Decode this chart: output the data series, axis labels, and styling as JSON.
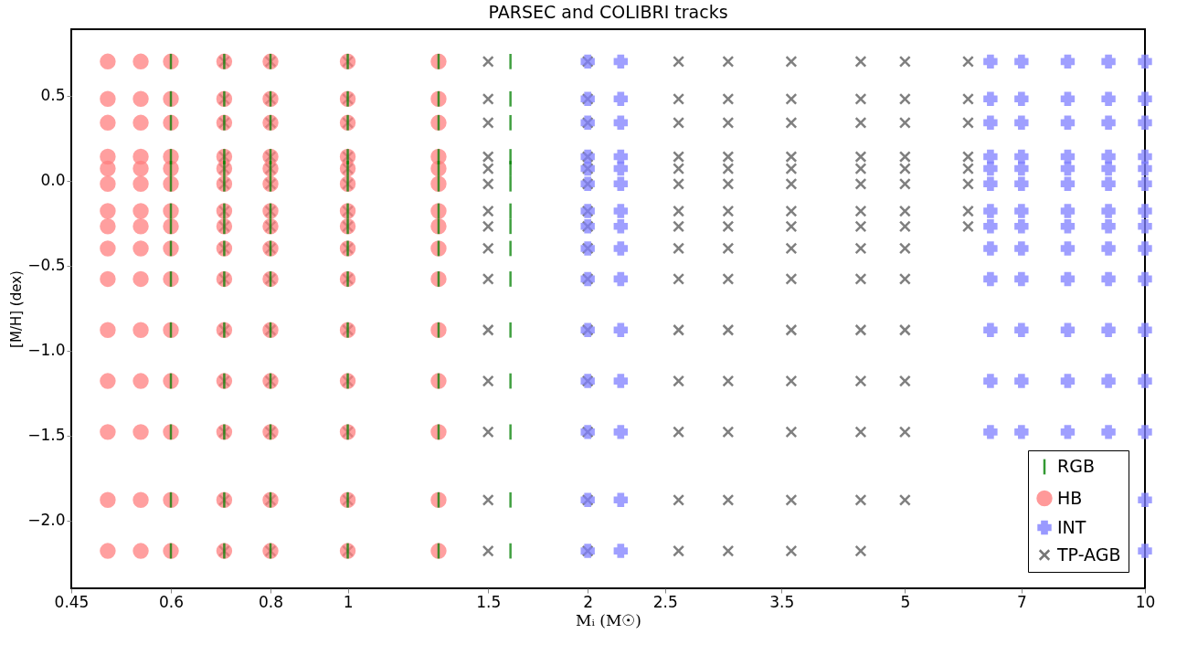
{
  "chart_data": {
    "type": "scatter",
    "title": "PARSEC and COLIBRI tracks",
    "xlabel": "Mᵢ (M☉)",
    "ylabel": "[M/H] (dex)",
    "log": "x",
    "xlim": [
      0.45,
      10
    ],
    "xticks": [
      0.45,
      0.6,
      0.8,
      1,
      1.5,
      2,
      2.5,
      3.5,
      5,
      7,
      10
    ],
    "ylim": [
      -2.4,
      0.89
    ],
    "yticks": [
      {
        "value": -2,
        "label": "−2.0"
      },
      {
        "value": -1.5,
        "label": "−1.5"
      },
      {
        "value": -1,
        "label": "−1.0"
      },
      {
        "value": -0.5,
        "label": "−0.5"
      },
      {
        "value": 0,
        "label": "0.0"
      },
      0.5
    ],
    "grid": false,
    "legend": "bottom right",
    "series": [
      {
        "name": "RGB",
        "color": "#008000",
        "x": [
          0.6,
          0.7,
          0.8,
          1,
          1.3,
          1.6,
          0.6,
          0.7,
          0.8,
          1,
          1.3,
          1.6,
          0.6,
          0.7,
          0.8,
          1,
          1.3,
          1.6,
          0.6,
          0.7,
          0.8,
          1,
          1.3,
          1.6,
          0.6,
          0.7,
          0.8,
          1,
          1.3,
          1.6,
          0.6,
          0.7,
          0.8,
          1,
          1.3,
          1.6,
          0.6,
          0.7,
          0.8,
          1,
          1.3,
          1.6,
          0.6,
          0.7,
          0.8,
          1,
          1.3,
          1.6,
          0.6,
          0.7,
          0.8,
          1,
          1.3,
          1.6,
          0.6,
          0.7,
          0.8,
          1,
          1.3,
          1.6,
          0.6,
          0.7,
          0.8,
          1,
          1.3,
          1.6,
          0.6,
          0.7,
          0.8,
          1,
          1.3,
          1.6,
          0.6,
          0.7,
          0.8,
          1,
          1.3,
          1.6,
          0.6,
          0.7,
          0.8,
          1,
          1.3,
          1.6,
          0.6,
          0.7,
          0.8,
          1,
          1.3,
          1.6
        ],
        "values": [
          0.7,
          0.7,
          0.7,
          0.7,
          0.7,
          0.7,
          0.48,
          0.48,
          0.48,
          0.48,
          0.48,
          0.48,
          0.34,
          0.34,
          0.34,
          0.34,
          0.34,
          0.34,
          0.14,
          0.14,
          0.14,
          0.14,
          0.14,
          0.14,
          0.07,
          0.07,
          0.07,
          0.07,
          0.07,
          0.07,
          -0.02,
          -0.02,
          -0.02,
          -0.02,
          -0.02,
          -0.02,
          -0.18,
          -0.18,
          -0.18,
          -0.18,
          -0.18,
          -0.18,
          -0.27,
          -0.27,
          -0.27,
          -0.27,
          -0.27,
          -0.27,
          -0.4,
          -0.4,
          -0.4,
          -0.4,
          -0.4,
          -0.4,
          -0.58,
          -0.58,
          -0.58,
          -0.58,
          -0.58,
          -0.58,
          -0.88,
          -0.88,
          -0.88,
          -0.88,
          -0.88,
          -0.88,
          -1.18,
          -1.18,
          -1.18,
          -1.18,
          -1.18,
          -1.18,
          -1.48,
          -1.48,
          -1.48,
          -1.48,
          -1.48,
          -1.48,
          -1.88,
          -1.88,
          -1.88,
          -1.88,
          -1.88,
          -1.88,
          -2.18,
          -2.18,
          -2.18,
          -2.18,
          -2.18,
          -2.18
        ]
      },
      {
        "name": "HB",
        "color": "#ff8080",
        "x": [
          0.5,
          0.55,
          0.6,
          0.7,
          0.8,
          1,
          1.3,
          0.5,
          0.55,
          0.6,
          0.7,
          0.8,
          1,
          1.3,
          0.5,
          0.55,
          0.6,
          0.7,
          0.8,
          1,
          1.3,
          0.5,
          0.55,
          0.6,
          0.7,
          0.8,
          1,
          1.3,
          0.5,
          0.55,
          0.6,
          0.7,
          0.8,
          1,
          1.3,
          0.5,
          0.55,
          0.6,
          0.7,
          0.8,
          1,
          1.3,
          0.5,
          0.55,
          0.6,
          0.7,
          0.8,
          1,
          1.3,
          0.5,
          0.55,
          0.6,
          0.7,
          0.8,
          1,
          1.3,
          0.5,
          0.55,
          0.6,
          0.7,
          0.8,
          1,
          1.3,
          0.5,
          0.55,
          0.6,
          0.7,
          0.8,
          1,
          1.3,
          0.5,
          0.55,
          0.6,
          0.7,
          0.8,
          1,
          1.3,
          0.5,
          0.55,
          0.6,
          0.7,
          0.8,
          1,
          1.3,
          0.5,
          0.55,
          0.6,
          0.7,
          0.8,
          1,
          1.3,
          0.5,
          0.55,
          0.6,
          0.7,
          0.8,
          1,
          1.3,
          0.5,
          0.55,
          0.6,
          0.7,
          0.8,
          1,
          1.3
        ],
        "values": [
          0.7,
          0.7,
          0.7,
          0.7,
          0.7,
          0.7,
          0.7,
          0.48,
          0.48,
          0.48,
          0.48,
          0.48,
          0.48,
          0.48,
          0.34,
          0.34,
          0.34,
          0.34,
          0.34,
          0.34,
          0.34,
          0.14,
          0.14,
          0.14,
          0.14,
          0.14,
          0.14,
          0.14,
          0.07,
          0.07,
          0.07,
          0.07,
          0.07,
          0.07,
          0.07,
          -0.02,
          -0.02,
          -0.02,
          -0.02,
          -0.02,
          -0.02,
          -0.02,
          -0.18,
          -0.18,
          -0.18,
          -0.18,
          -0.18,
          -0.18,
          -0.18,
          -0.27,
          -0.27,
          -0.27,
          -0.27,
          -0.27,
          -0.27,
          -0.27,
          -0.4,
          -0.4,
          -0.4,
          -0.4,
          -0.4,
          -0.4,
          -0.4,
          -0.58,
          -0.58,
          -0.58,
          -0.58,
          -0.58,
          -0.58,
          -0.58,
          -0.88,
          -0.88,
          -0.88,
          -0.88,
          -0.88,
          -0.88,
          -0.88,
          -1.18,
          -1.18,
          -1.18,
          -1.18,
          -1.18,
          -1.18,
          -1.18,
          -1.48,
          -1.48,
          -1.48,
          -1.48,
          -1.48,
          -1.48,
          -1.48,
          -1.88,
          -1.88,
          -1.88,
          -1.88,
          -1.88,
          -1.88,
          -1.88,
          -2.18,
          -2.18,
          -2.18,
          -2.18,
          -2.18,
          -2.18,
          -2.18
        ]
      },
      {
        "name": "INT",
        "color": "#8080ff",
        "x": [
          2,
          2.2,
          6.4,
          7,
          8,
          9,
          10,
          2,
          2.2,
          6.4,
          7,
          8,
          9,
          10,
          2,
          2.2,
          6.4,
          7,
          8,
          9,
          10,
          2,
          2.2,
          6.4,
          7,
          8,
          9,
          10,
          2,
          2.2,
          6.4,
          7,
          8,
          9,
          10,
          2,
          2.2,
          6.4,
          7,
          8,
          9,
          10,
          2,
          2.2,
          6.4,
          7,
          8,
          9,
          10,
          2,
          2.2,
          6.4,
          7,
          8,
          9,
          10,
          2,
          2.2,
          6.4,
          7,
          8,
          9,
          10,
          2,
          2.2,
          6.4,
          7,
          8,
          9,
          10,
          2,
          2.2,
          6.4,
          7,
          8,
          9,
          10,
          2,
          2.2,
          6.4,
          7,
          8,
          9,
          10,
          2,
          2.2,
          6.4,
          7,
          8,
          9,
          10,
          2,
          2.2,
          10,
          2,
          2.2,
          10
        ],
        "values": [
          0.7,
          0.7,
          0.7,
          0.7,
          0.7,
          0.7,
          0.7,
          0.48,
          0.48,
          0.48,
          0.48,
          0.48,
          0.48,
          0.48,
          0.34,
          0.34,
          0.34,
          0.34,
          0.34,
          0.34,
          0.34,
          0.14,
          0.14,
          0.14,
          0.14,
          0.14,
          0.14,
          0.14,
          0.07,
          0.07,
          0.07,
          0.07,
          0.07,
          0.07,
          0.07,
          -0.02,
          -0.02,
          -0.02,
          -0.02,
          -0.02,
          -0.02,
          -0.02,
          -0.18,
          -0.18,
          -0.18,
          -0.18,
          -0.18,
          -0.18,
          -0.18,
          -0.27,
          -0.27,
          -0.27,
          -0.27,
          -0.27,
          -0.27,
          -0.27,
          -0.4,
          -0.4,
          -0.4,
          -0.4,
          -0.4,
          -0.4,
          -0.4,
          -0.58,
          -0.58,
          -0.58,
          -0.58,
          -0.58,
          -0.58,
          -0.58,
          -0.88,
          -0.88,
          -0.88,
          -0.88,
          -0.88,
          -0.88,
          -0.88,
          -1.18,
          -1.18,
          -1.18,
          -1.18,
          -1.18,
          -1.18,
          -1.18,
          -1.48,
          -1.48,
          -1.48,
          -1.48,
          -1.48,
          -1.48,
          -1.48,
          -1.88,
          -1.88,
          -1.88,
          -2.18,
          -2.18,
          -2.18
        ]
      },
      {
        "name": "TP-AGB",
        "color": "#555555",
        "x": [
          0.7,
          0.8,
          1,
          1.5,
          2,
          2.6,
          3,
          3.6,
          4.4,
          5,
          6,
          0.7,
          0.8,
          1,
          1.5,
          2,
          2.6,
          3,
          3.6,
          4.4,
          5,
          6,
          0.7,
          0.8,
          1,
          1.5,
          2,
          2.6,
          3,
          3.6,
          4.4,
          5,
          6,
          0.7,
          0.8,
          1,
          1.5,
          2,
          2.6,
          3,
          3.6,
          4.4,
          5,
          6,
          0.7,
          0.8,
          1,
          1.5,
          2,
          2.6,
          3,
          3.6,
          4.4,
          5,
          6,
          0.7,
          0.8,
          1,
          1.5,
          2,
          2.6,
          3,
          3.6,
          4.4,
          5,
          6,
          0.7,
          0.8,
          1,
          1.5,
          2,
          2.6,
          3,
          3.6,
          4.4,
          5,
          6,
          0.7,
          0.8,
          1,
          1.5,
          2,
          2.6,
          3,
          3.6,
          4.4,
          5,
          6,
          0.7,
          0.8,
          1,
          1.5,
          2,
          2.6,
          3,
          3.6,
          4.4,
          5,
          0.7,
          0.8,
          1,
          1.5,
          2,
          2.6,
          3,
          3.6,
          4.4,
          5,
          0.7,
          0.8,
          1,
          1.5,
          2,
          2.6,
          3,
          3.6,
          4.4,
          5,
          0.7,
          0.8,
          1,
          1.5,
          2,
          2.6,
          3,
          3.6,
          4.4,
          5,
          0.7,
          0.8,
          1,
          1.5,
          2,
          2.6,
          3,
          3.6,
          4.4,
          5,
          0.7,
          0.8,
          1,
          1.5,
          2,
          2.6,
          3,
          3.6,
          4.4,
          5,
          0.7,
          0.8,
          1,
          1.5,
          2,
          2.6,
          3,
          3.6,
          4.4
        ],
        "values": [
          0.7,
          0.7,
          0.7,
          0.7,
          0.7,
          0.7,
          0.7,
          0.7,
          0.7,
          0.7,
          0.7,
          0.48,
          0.48,
          0.48,
          0.48,
          0.48,
          0.48,
          0.48,
          0.48,
          0.48,
          0.48,
          0.48,
          0.34,
          0.34,
          0.34,
          0.34,
          0.34,
          0.34,
          0.34,
          0.34,
          0.34,
          0.34,
          0.34,
          0.14,
          0.14,
          0.14,
          0.14,
          0.14,
          0.14,
          0.14,
          0.14,
          0.14,
          0.14,
          0.14,
          0.07,
          0.07,
          0.07,
          0.07,
          0.07,
          0.07,
          0.07,
          0.07,
          0.07,
          0.07,
          0.07,
          -0.02,
          -0.02,
          -0.02,
          -0.02,
          -0.02,
          -0.02,
          -0.02,
          -0.02,
          -0.02,
          -0.02,
          -0.02,
          -0.18,
          -0.18,
          -0.18,
          -0.18,
          -0.18,
          -0.18,
          -0.18,
          -0.18,
          -0.18,
          -0.18,
          -0.18,
          -0.27,
          -0.27,
          -0.27,
          -0.27,
          -0.27,
          -0.27,
          -0.27,
          -0.27,
          -0.27,
          -0.27,
          -0.27,
          -0.4,
          -0.4,
          -0.4,
          -0.4,
          -0.4,
          -0.4,
          -0.4,
          -0.4,
          -0.4,
          -0.4,
          -0.58,
          -0.58,
          -0.58,
          -0.58,
          -0.58,
          -0.58,
          -0.58,
          -0.58,
          -0.58,
          -0.58,
          -0.88,
          -0.88,
          -0.88,
          -0.88,
          -0.88,
          -0.88,
          -0.88,
          -0.88,
          -0.88,
          -0.88,
          -1.18,
          -1.18,
          -1.18,
          -1.18,
          -1.18,
          -1.18,
          -1.18,
          -1.18,
          -1.18,
          -1.18,
          -1.48,
          -1.48,
          -1.48,
          -1.48,
          -1.48,
          -1.48,
          -1.48,
          -1.48,
          -1.48,
          -1.48,
          -1.88,
          -1.88,
          -1.88,
          -1.88,
          -1.88,
          -1.88,
          -1.88,
          -1.88,
          -1.88,
          -1.88,
          -2.18,
          -2.18,
          -2.18,
          -2.18,
          -2.18,
          -2.18,
          -2.18,
          -2.18,
          -2.18
        ]
      }
    ]
  }
}
